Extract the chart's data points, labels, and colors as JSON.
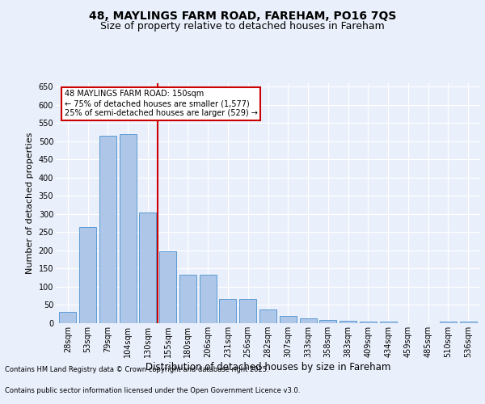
{
  "title1": "48, MAYLINGS FARM ROAD, FAREHAM, PO16 7QS",
  "title2": "Size of property relative to detached houses in Fareham",
  "xlabel": "Distribution of detached houses by size in Fareham",
  "ylabel": "Number of detached properties",
  "categories": [
    "28sqm",
    "53sqm",
    "79sqm",
    "104sqm",
    "130sqm",
    "155sqm",
    "180sqm",
    "206sqm",
    "231sqm",
    "256sqm",
    "282sqm",
    "307sqm",
    "333sqm",
    "358sqm",
    "383sqm",
    "409sqm",
    "434sqm",
    "459sqm",
    "485sqm",
    "510sqm",
    "536sqm"
  ],
  "values": [
    30,
    265,
    515,
    520,
    305,
    197,
    133,
    133,
    67,
    67,
    38,
    19,
    14,
    8,
    7,
    5,
    5,
    1,
    1,
    4,
    4
  ],
  "bar_color": "#aec6e8",
  "bar_edge_color": "#5b9bd5",
  "vline_color": "#cc0000",
  "annotation_title": "48 MAYLINGS FARM ROAD: 150sqm",
  "annotation_line1": "← 75% of detached houses are smaller (1,577)",
  "annotation_line2": "25% of semi-detached houses are larger (529) →",
  "annotation_box_color": "#ffffff",
  "annotation_box_edge": "#cc0000",
  "ylim": [
    0,
    660
  ],
  "yticks": [
    0,
    50,
    100,
    150,
    200,
    250,
    300,
    350,
    400,
    450,
    500,
    550,
    600,
    650
  ],
  "footnote1": "Contains HM Land Registry data © Crown copyright and database right 2025.",
  "footnote2": "Contains public sector information licensed under the Open Government Licence v3.0.",
  "bg_color": "#eaf0fb",
  "plot_bg_color": "#eaf0fb",
  "title1_fontsize": 10,
  "title2_fontsize": 9,
  "tick_fontsize": 7,
  "ylabel_fontsize": 8,
  "xlabel_fontsize": 8.5,
  "footnote_fontsize": 6,
  "annotation_fontsize": 7
}
